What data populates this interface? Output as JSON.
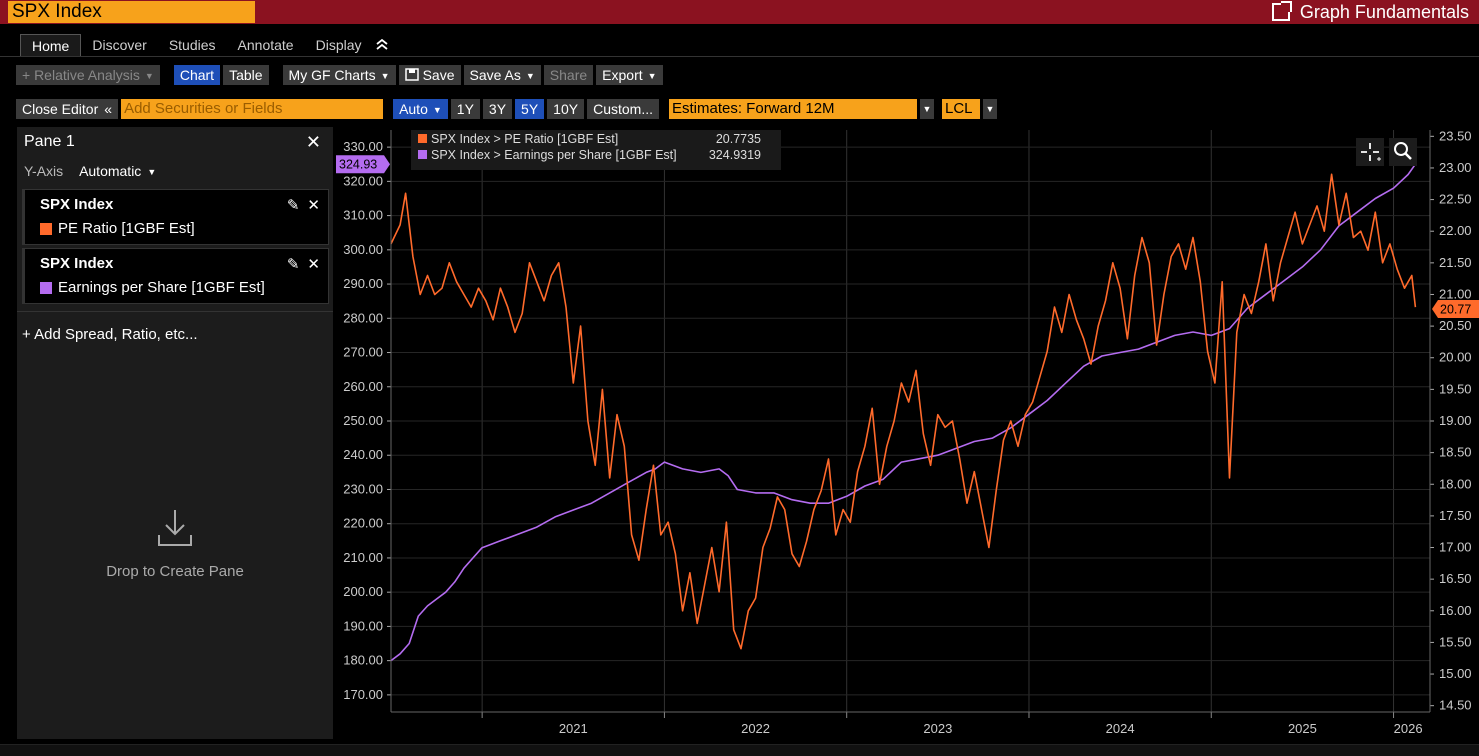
{
  "title_bar": {
    "ticker": "SPX Index",
    "app_title": "Graph Fundamentals"
  },
  "tabs": [
    {
      "label": "Home",
      "active": true
    },
    {
      "label": "Discover"
    },
    {
      "label": "Studies"
    },
    {
      "label": "Annotate"
    },
    {
      "label": "Display"
    }
  ],
  "toolbar": {
    "relative_analysis": "+ Relative Analysis",
    "chart": "Chart",
    "table": "Table",
    "my_gf_charts": "My GF Charts",
    "save": "Save",
    "save_as": "Save As",
    "share": "Share",
    "export": "Export"
  },
  "editor_row": {
    "close_editor": "Close Editor",
    "securities_placeholder": "Add Securities or Fields",
    "auto": "Auto",
    "ranges": [
      "1Y",
      "3Y",
      "5Y",
      "10Y"
    ],
    "custom": "Custom...",
    "estimates": "Estimates: Forward 12M",
    "currency": "LCL"
  },
  "pane": {
    "title": "Pane 1",
    "y_axis_label": "Y-Axis",
    "y_axis_value": "Automatic",
    "series": [
      {
        "security": "SPX Index",
        "field": "PE Ratio [1GBF Est]",
        "color": "#ff6a2b"
      },
      {
        "security": "SPX Index",
        "field": "Earnings per Share [1GBF Est]",
        "color": "#b46cf0"
      }
    ],
    "add_spread": "+ Add Spread, Ratio, etc...",
    "drop_label": "Drop to Create Pane"
  },
  "chart_data": {
    "type": "line",
    "legend": [
      {
        "label": "SPX Index > PE Ratio [1GBF Est]",
        "value": "20.7735",
        "color": "#ff6a2b"
      },
      {
        "label": "SPX Index > Earnings per Share [1GBF Est]",
        "value": "324.9319",
        "color": "#b46cf0"
      }
    ],
    "x_ticks": [
      "2021",
      "2022",
      "2023",
      "2024",
      "2025",
      "2026"
    ],
    "x_range": [
      2020.5,
      2026.2
    ],
    "left_axis": {
      "ticks": [
        "330.00",
        "320.00",
        "310.00",
        "300.00",
        "290.00",
        "280.00",
        "270.00",
        "260.00",
        "250.00",
        "240.00",
        "230.00",
        "220.00",
        "210.00",
        "200.00",
        "190.00",
        "180.00",
        "170.00"
      ],
      "range": [
        165,
        335
      ]
    },
    "right_axis": {
      "ticks": [
        "23.50",
        "23.00",
        "22.50",
        "22.00",
        "21.50",
        "21.00",
        "20.50",
        "20.00",
        "19.50",
        "19.00",
        "18.50",
        "18.00",
        "17.50",
        "17.00",
        "16.50",
        "16.00",
        "15.50",
        "15.00",
        "14.50"
      ],
      "range": [
        14.4,
        23.6
      ]
    },
    "last_value_tags": {
      "eps": "324.93",
      "pe": "20.77"
    },
    "series": [
      {
        "name": "SPX Index > Earnings per Share [1GBF Est]",
        "axis": "left",
        "color": "#b46cf0",
        "x": [
          2020.5,
          2020.55,
          2020.6,
          2020.65,
          2020.7,
          2020.75,
          2020.8,
          2020.85,
          2020.9,
          2020.95,
          2021.0,
          2021.05,
          2021.1,
          2021.2,
          2021.3,
          2021.4,
          2021.5,
          2021.6,
          2021.7,
          2021.8,
          2021.9,
          2021.95,
          2022.0,
          2022.05,
          2022.1,
          2022.2,
          2022.3,
          2022.35,
          2022.4,
          2022.5,
          2022.6,
          2022.7,
          2022.8,
          2022.9,
          2023.0,
          2023.1,
          2023.2,
          2023.3,
          2023.4,
          2023.5,
          2023.6,
          2023.7,
          2023.8,
          2023.9,
          2024.0,
          2024.1,
          2024.2,
          2024.3,
          2024.4,
          2024.5,
          2024.6,
          2024.7,
          2024.8,
          2024.9,
          2025.0,
          2025.1,
          2025.2,
          2025.3,
          2025.4,
          2025.5,
          2025.6,
          2025.7,
          2025.8,
          2025.9,
          2026.0,
          2026.08,
          2026.12
        ],
        "y": [
          180,
          182,
          185,
          193,
          196,
          198,
          200,
          203,
          207,
          210,
          213,
          214,
          215,
          217,
          219,
          222,
          224,
          226,
          229,
          232,
          235,
          236,
          238,
          237,
          236,
          235,
          236,
          234,
          230,
          229,
          229,
          227,
          226,
          226,
          228,
          231,
          233,
          238,
          239,
          240,
          242,
          244,
          245,
          248,
          252,
          256,
          261,
          266,
          269,
          270,
          271,
          273,
          275,
          276,
          275,
          277,
          283,
          287,
          291,
          295,
          300,
          307,
          311,
          315,
          318,
          322,
          325
        ]
      },
      {
        "name": "SPX Index > PE Ratio [1GBF Est]",
        "axis": "right",
        "color": "#ff6a2b",
        "x": [
          2020.5,
          2020.55,
          2020.58,
          2020.62,
          2020.66,
          2020.7,
          2020.74,
          2020.78,
          2020.82,
          2020.86,
          2020.9,
          2020.94,
          2020.98,
          2021.02,
          2021.06,
          2021.1,
          2021.14,
          2021.18,
          2021.22,
          2021.26,
          2021.3,
          2021.34,
          2021.38,
          2021.42,
          2021.46,
          2021.5,
          2021.54,
          2021.58,
          2021.62,
          2021.66,
          2021.7,
          2021.74,
          2021.78,
          2021.82,
          2021.86,
          2021.9,
          2021.94,
          2021.98,
          2022.02,
          2022.06,
          2022.1,
          2022.14,
          2022.18,
          2022.22,
          2022.26,
          2022.3,
          2022.34,
          2022.38,
          2022.42,
          2022.46,
          2022.5,
          2022.54,
          2022.58,
          2022.62,
          2022.66,
          2022.7,
          2022.74,
          2022.78,
          2022.82,
          2022.86,
          2022.9,
          2022.94,
          2022.98,
          2023.02,
          2023.06,
          2023.1,
          2023.14,
          2023.18,
          2023.22,
          2023.26,
          2023.3,
          2023.34,
          2023.38,
          2023.42,
          2023.46,
          2023.5,
          2023.54,
          2023.58,
          2023.62,
          2023.66,
          2023.7,
          2023.74,
          2023.78,
          2023.82,
          2023.86,
          2023.9,
          2023.94,
          2023.98,
          2024.02,
          2024.06,
          2024.1,
          2024.14,
          2024.18,
          2024.22,
          2024.26,
          2024.3,
          2024.34,
          2024.38,
          2024.42,
          2024.46,
          2024.5,
          2024.54,
          2024.58,
          2024.62,
          2024.66,
          2024.7,
          2024.74,
          2024.78,
          2024.82,
          2024.86,
          2024.9,
          2024.94,
          2024.98,
          2025.02,
          2025.06,
          2025.1,
          2025.14,
          2025.18,
          2025.22,
          2025.26,
          2025.3,
          2025.34,
          2025.38,
          2025.42,
          2025.46,
          2025.5,
          2025.54,
          2025.58,
          2025.62,
          2025.66,
          2025.7,
          2025.74,
          2025.78,
          2025.82,
          2025.86,
          2025.9,
          2025.94,
          2025.98,
          2026.02,
          2026.06,
          2026.1,
          2026.12
        ],
        "y": [
          21.8,
          22.1,
          22.6,
          21.6,
          21.0,
          21.3,
          21.0,
          21.1,
          21.5,
          21.2,
          21.0,
          20.8,
          21.1,
          20.9,
          20.6,
          21.1,
          20.8,
          20.4,
          20.7,
          21.5,
          21.2,
          20.9,
          21.3,
          21.5,
          20.8,
          19.6,
          20.5,
          19.0,
          18.3,
          19.5,
          18.1,
          19.1,
          18.6,
          17.2,
          16.8,
          17.6,
          18.3,
          17.2,
          17.4,
          16.9,
          16.0,
          16.6,
          15.8,
          16.4,
          17.0,
          16.3,
          17.4,
          15.7,
          15.4,
          16.0,
          16.2,
          17.0,
          17.3,
          17.8,
          17.6,
          16.9,
          16.7,
          17.1,
          17.6,
          17.9,
          18.4,
          17.2,
          17.6,
          17.4,
          18.2,
          18.6,
          19.2,
          18.0,
          18.6,
          19.0,
          19.6,
          19.3,
          19.8,
          18.8,
          18.3,
          19.1,
          18.9,
          19.0,
          18.4,
          17.7,
          18.2,
          17.6,
          17.0,
          17.9,
          18.7,
          19.0,
          18.6,
          19.1,
          19.3,
          19.7,
          20.1,
          20.8,
          20.4,
          21.0,
          20.6,
          20.3,
          19.9,
          20.5,
          20.9,
          21.5,
          21.1,
          20.3,
          21.3,
          21.9,
          21.5,
          20.2,
          21.0,
          21.6,
          21.8,
          21.4,
          21.9,
          21.2,
          20.1,
          19.6,
          21.2,
          18.1,
          20.4,
          21.0,
          20.7,
          21.2,
          21.8,
          20.9,
          21.5,
          21.9,
          22.3,
          21.8,
          22.1,
          22.4,
          22.0,
          22.9,
          22.1,
          22.6,
          21.9,
          22.0,
          21.7,
          22.3,
          21.5,
          21.8,
          21.4,
          21.1,
          21.3,
          20.8
        ]
      }
    ]
  }
}
